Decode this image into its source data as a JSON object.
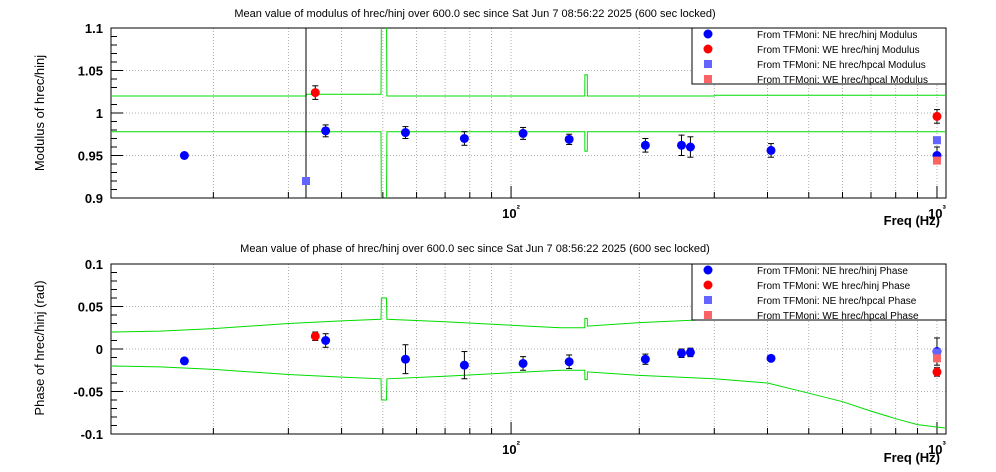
{
  "chart_data": [
    {
      "type": "scatter",
      "title": "Mean value of modulus of hrec/hinj over 600.0 sec since Sat Jun  7 08:56:22 2025 (600 sec locked)",
      "xlabel": "Freq (Hz)",
      "ylabel": "Modulus of hrec/hinj",
      "xscale": "log",
      "xlim": [
        11.5,
        1050
      ],
      "ylim": [
        0.9,
        1.1
      ],
      "yticks": [
        0.9,
        0.95,
        1,
        1.05,
        1.1
      ],
      "ytick_labels": [
        "0.9",
        "0.95",
        "1",
        "1.05",
        "1.1"
      ],
      "xticks": [
        100,
        1000
      ],
      "xtick_labels": [
        "10²",
        "10³"
      ],
      "grid": true,
      "legend_position": "top-right",
      "series": [
        {
          "name": "From TFMoni: NE hrec/hinj Modulus",
          "color": "#0000ff",
          "marker": "circle",
          "x": [
            17.1,
            36.7,
            56.5,
            77.7,
            106.7,
            136.9,
            206.7,
            251.3,
            263.7,
            407.7,
            1000
          ],
          "y": [
            0.95,
            0.979,
            0.977,
            0.97,
            0.976,
            0.969,
            0.962,
            0.962,
            0.96,
            0.956,
            0.95
          ],
          "err": [
            0.0,
            0.007,
            0.007,
            0.008,
            0.007,
            0.006,
            0.008,
            0.012,
            0.012,
            0.008,
            0.01
          ]
        },
        {
          "name": "From TFMoni: WE hrec/hinj Modulus",
          "color": "#ff0000",
          "marker": "circle",
          "x": [
            34.7,
            1000
          ],
          "y": [
            1.024,
            0.996
          ],
          "err": [
            0.008,
            0.008
          ]
        },
        {
          "name": "From TFMoni: NE hrec/hpcal Modulus",
          "color": "#6464ff",
          "marker": "square",
          "x": [
            33.0,
            1000
          ],
          "y": [
            0.92,
            0.968
          ],
          "err": [
            0.0,
            0.0
          ]
        },
        {
          "name": "From TFMoni: WE hrec/hpcal Modulus",
          "color": "#ff6464",
          "marker": "square",
          "x": [
            1000
          ],
          "y": [
            0.944
          ],
          "err": [
            0.0
          ]
        }
      ],
      "bands": [
        {
          "name": "upper",
          "color": "#00dd00",
          "x": [
            11.5,
            33.0,
            33.1,
            49.5,
            49.6,
            51.0,
            51.1,
            149.0,
            149.1,
            151.0,
            151.1,
            300.0,
            301.0,
            1050
          ],
          "y": [
            1.02,
            1.02,
            1.022,
            1.022,
            1.12,
            1.12,
            1.02,
            1.02,
            1.045,
            1.045,
            1.02,
            1.02,
            1.021,
            1.021
          ]
        },
        {
          "name": "lower",
          "color": "#00dd00",
          "x": [
            11.5,
            49.5,
            49.6,
            51.0,
            51.1,
            149.0,
            149.1,
            151.0,
            151.1,
            1050
          ],
          "y": [
            0.978,
            0.978,
            0.88,
            0.88,
            0.978,
            0.978,
            0.955,
            0.955,
            0.978,
            0.978
          ]
        }
      ],
      "marker_line_x": 33.0
    },
    {
      "type": "scatter",
      "title": "Mean value of phase of hrec/hinj over 600.0 sec since Sat Jun  7 08:56:22 2025 (600 sec locked)",
      "xlabel": "Freq (Hz)",
      "ylabel": "Phase of hrec/hinj (rad)",
      "xscale": "log",
      "xlim": [
        11.5,
        1050
      ],
      "ylim": [
        -0.1,
        0.1
      ],
      "yticks": [
        -0.1,
        -0.05,
        0,
        0.05,
        0.1
      ],
      "ytick_labels": [
        "-0.1",
        "-0.05",
        "0",
        "0.05",
        "0.1"
      ],
      "xticks": [
        100,
        1000
      ],
      "xtick_labels": [
        "10²",
        "10³"
      ],
      "grid": true,
      "legend_position": "top-right",
      "series": [
        {
          "name": "From TFMoni: NE hrec/hinj Phase",
          "color": "#0000ff",
          "marker": "circle",
          "x": [
            17.1,
            36.7,
            56.5,
            77.7,
            106.7,
            136.9,
            206.7,
            251.3,
            263.7,
            407.7,
            1000
          ],
          "y": [
            -0.014,
            0.01,
            -0.012,
            -0.019,
            -0.017,
            -0.015,
            -0.012,
            -0.005,
            -0.004,
            -0.011,
            -0.003
          ],
          "err": [
            0.0,
            0.008,
            0.017,
            0.016,
            0.008,
            0.008,
            0.006,
            0.005,
            0.005,
            0.0,
            0.016
          ]
        },
        {
          "name": "From TFMoni: WE hrec/hinj Phase",
          "color": "#ff0000",
          "marker": "circle",
          "x": [
            34.7,
            1000
          ],
          "y": [
            0.015,
            -0.027
          ],
          "err": [
            0.005,
            0.005
          ]
        },
        {
          "name": "From TFMoni: NE hrec/hpcal Phase",
          "color": "#6464ff",
          "marker": "square",
          "x": [
            1000
          ],
          "y": [
            -0.004
          ],
          "err": [
            0.0
          ]
        },
        {
          "name": "From TFMoni: WE hrec/hpcal Phase",
          "color": "#ff6464",
          "marker": "square",
          "x": [
            1000
          ],
          "y": [
            -0.011
          ],
          "err": [
            0.0
          ]
        }
      ],
      "bands": [
        {
          "name": "upper",
          "color": "#00dd00",
          "x": [
            11.5,
            15,
            20,
            30,
            40,
            49.5,
            49.6,
            51.0,
            51.1,
            70,
            100,
            130,
            149.0,
            149.1,
            151.0,
            151.1,
            200,
            300,
            400,
            500,
            600,
            700,
            800,
            900,
            1050
          ],
          "y": [
            0.02,
            0.021,
            0.024,
            0.03,
            0.033,
            0.035,
            0.06,
            0.06,
            0.035,
            0.032,
            0.028,
            0.025,
            0.025,
            0.036,
            0.036,
            0.027,
            0.031,
            0.035,
            0.037,
            0.038,
            0.039,
            0.04,
            0.04,
            0.04,
            0.04
          ]
        },
        {
          "name": "lower",
          "color": "#00dd00",
          "x": [
            11.5,
            15,
            20,
            30,
            40,
            49.5,
            49.6,
            51.0,
            51.1,
            70,
            100,
            130,
            149.0,
            149.1,
            151.0,
            151.1,
            200,
            300,
            400,
            500,
            600,
            700,
            800,
            900,
            1050
          ],
          "y": [
            -0.02,
            -0.021,
            -0.024,
            -0.03,
            -0.033,
            -0.035,
            -0.06,
            -0.06,
            -0.035,
            -0.032,
            -0.028,
            -0.025,
            -0.025,
            -0.036,
            -0.036,
            -0.027,
            -0.031,
            -0.035,
            -0.04,
            -0.052,
            -0.062,
            -0.073,
            -0.082,
            -0.089,
            -0.093
          ]
        }
      ],
      "marker_line_x": null
    }
  ]
}
